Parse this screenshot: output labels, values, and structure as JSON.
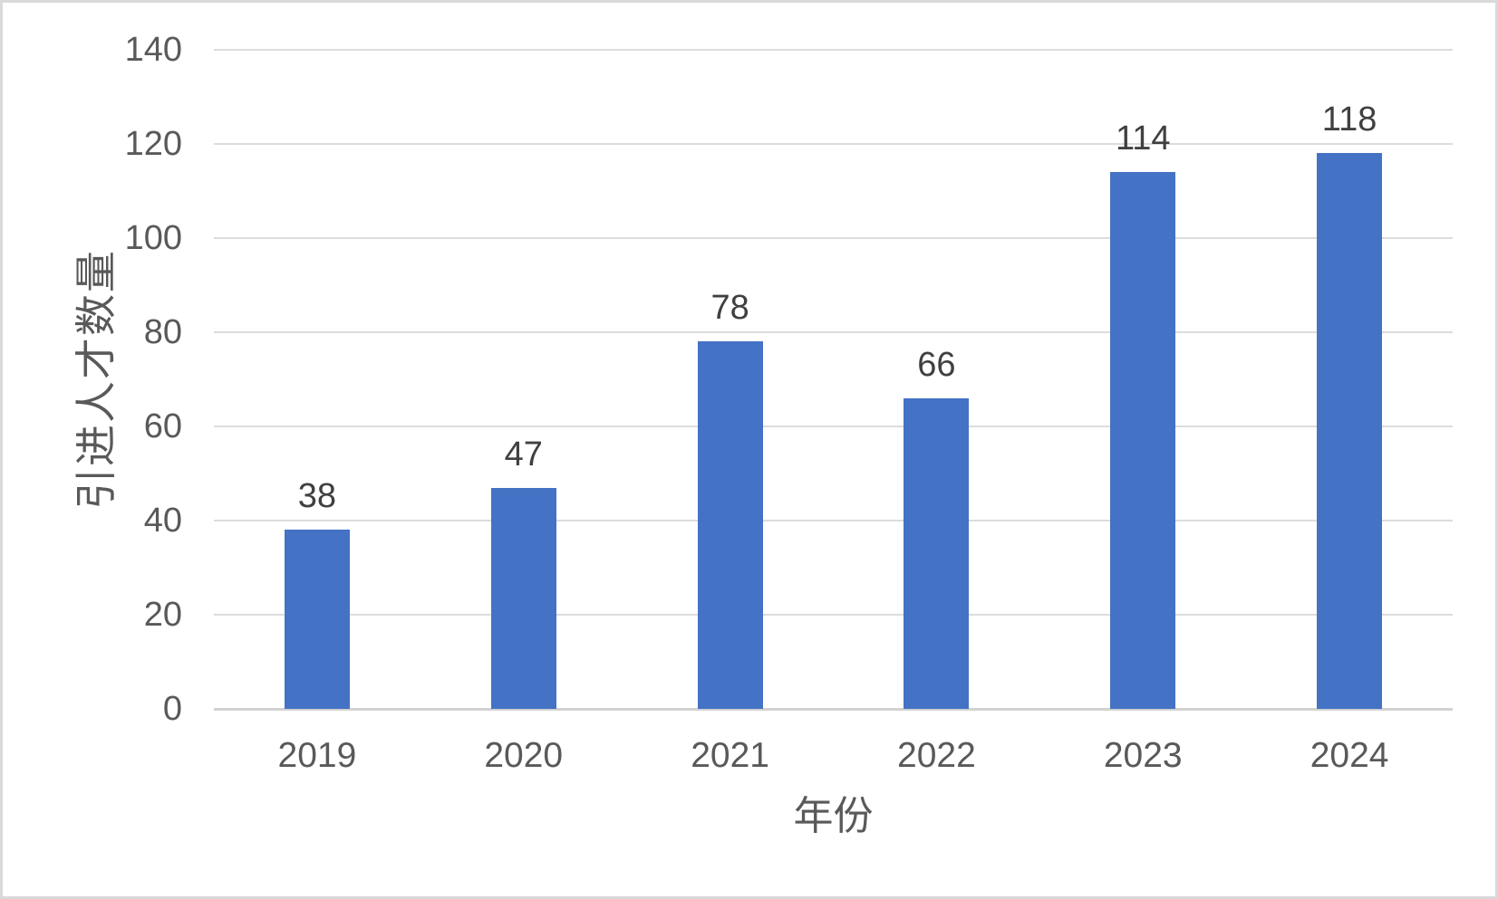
{
  "chart_data": {
    "type": "bar",
    "title": "",
    "categories": [
      "2019",
      "2020",
      "2021",
      "2022",
      "2023",
      "2024"
    ],
    "values": [
      38,
      47,
      78,
      66,
      114,
      118
    ],
    "data_labels": [
      "38",
      "47",
      "78",
      "66",
      "114",
      "118"
    ],
    "xlabel": "年份",
    "ylabel": "引进人才数量",
    "ylim": [
      0,
      140
    ],
    "ytick_step": 20,
    "ytick_labels": [
      "0",
      "20",
      "40",
      "60",
      "80",
      "100",
      "120",
      "140"
    ],
    "legend_position": "none",
    "grid": "horizontal"
  },
  "colors": {
    "bar_fill": "#4472C4",
    "gridline": "#DCDCDC",
    "axis_line": "#D2D2D2",
    "tick_label": "#595959",
    "data_label": "#404040",
    "axis_title": "#595959",
    "background": "#FFFFFF",
    "frame_border": "#D9D9D9"
  }
}
